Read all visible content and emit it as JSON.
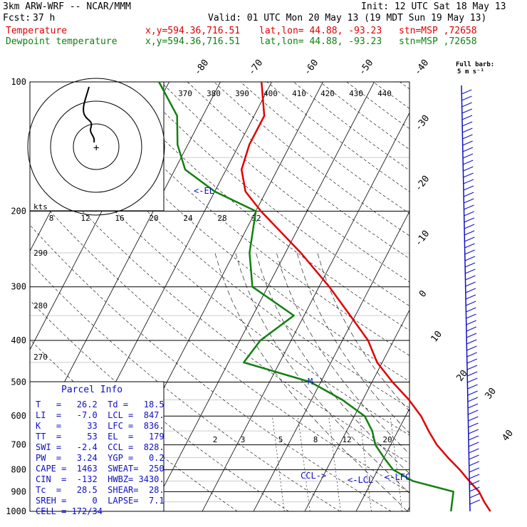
{
  "header": {
    "model": "3km ARW-WRF -- NCAR/MMM",
    "init": "Init: 12 UTC Sat 18 May 13",
    "fcst_label": "Fcst:",
    "fcst_value": "37 h",
    "valid": "Valid: 01 UTC Mon 20 May 13 (19 MDT Sun 19 May 13)",
    "temp_line": {
      "label": "Temperature",
      "xy": "x,y=594.36,716.51",
      "latlon": "lat,lon= 44.88, -93.23",
      "stn": "stn=MSP ,72658"
    },
    "dew_line": {
      "label": "Dewpoint temperature",
      "xy": "x,y=594.36,716.51",
      "latlon": "lat,lon= 44.88, -93.23",
      "stn": "stn=MSP ,72658"
    }
  },
  "colors": {
    "temperature": "#e00000",
    "dewpoint": "#108010",
    "parcel": "#1010c0"
  },
  "chart_data": {
    "type": "line",
    "chart_kind": "skew-T log-p",
    "ylim": [
      1000,
      100
    ],
    "y_scale": "log",
    "pressure_ticks": [
      "100",
      "200",
      "300",
      "400",
      "500",
      "600",
      "700",
      "800",
      "900",
      "1000"
    ],
    "isotherm_labels": [
      "-80",
      "-70",
      "-60",
      "-50",
      "-40",
      "-30",
      "-20",
      "-10",
      "0",
      "10",
      "20",
      "30",
      "40"
    ],
    "theta_labels": [
      "370",
      "380",
      "390",
      "400",
      "410",
      "420",
      "430",
      "440"
    ],
    "wind_speed_labels": {
      "unit": "kts",
      "values": [
        "8",
        "12",
        "16",
        "20",
        "24",
        "28",
        "32"
      ]
    },
    "theta_e_labels": [
      "290",
      "280",
      "270"
    ],
    "mixing_ratio_labels": [
      "2",
      "3",
      "5",
      "8",
      "12",
      "20"
    ],
    "series": [
      {
        "name": "Temperature",
        "points": [
          [
            1000,
            26.2
          ],
          [
            950,
            24
          ],
          [
            900,
            22
          ],
          [
            850,
            19
          ],
          [
            800,
            16
          ],
          [
            750,
            12.5
          ],
          [
            700,
            9
          ],
          [
            650,
            6
          ],
          [
            600,
            3
          ],
          [
            550,
            -1
          ],
          [
            500,
            -6
          ],
          [
            450,
            -11
          ],
          [
            400,
            -15
          ],
          [
            350,
            -21
          ],
          [
            300,
            -28
          ],
          [
            250,
            -37
          ],
          [
            200,
            -49
          ],
          [
            180,
            -54
          ],
          [
            160,
            -57
          ],
          [
            140,
            -58
          ],
          [
            120,
            -58
          ],
          [
            100,
            -62
          ]
        ]
      },
      {
        "name": "Dewpoint temperature",
        "points": [
          [
            1000,
            18.5
          ],
          [
            900,
            17
          ],
          [
            850,
            8
          ],
          [
            800,
            3
          ],
          [
            750,
            0
          ],
          [
            700,
            -3
          ],
          [
            650,
            -5
          ],
          [
            600,
            -8
          ],
          [
            550,
            -14
          ],
          [
            500,
            -22
          ],
          [
            450,
            -37
          ],
          [
            400,
            -36
          ],
          [
            350,
            -32
          ],
          [
            300,
            -43
          ],
          [
            250,
            -47
          ],
          [
            200,
            -50
          ],
          [
            180,
            -60
          ],
          [
            160,
            -68
          ],
          [
            140,
            -72
          ],
          [
            120,
            -75
          ],
          [
            100,
            -82
          ]
        ]
      }
    ],
    "annotations": [
      "<-EL",
      "M",
      "CCL->",
      "<-LCL",
      "<-LFC"
    ],
    "barb_legend": {
      "label": "Full barb:",
      "value": "5 m s⁻¹"
    }
  },
  "parcel_info": {
    "title": "Parcel Info",
    "lines": [
      "T   =   26.2  Td =   18.5",
      "LI  =   -7.0  LCL =  847.",
      "K   =     33  LFC =  836.",
      "TT  =     53  EL  =   179",
      "SWI =   -2.4  CCL =  828.",
      "PW  =   3.24  YGP =   0.2",
      "CAPE =  1463  SWEAT=  250",
      "CIN  =  -132  HWBZ= 3430.",
      "Tc  =   28.5  SHEAR=  28.",
      "SREH =     0  LAPSE=  7.1",
      "CELL = 172/34"
    ]
  }
}
